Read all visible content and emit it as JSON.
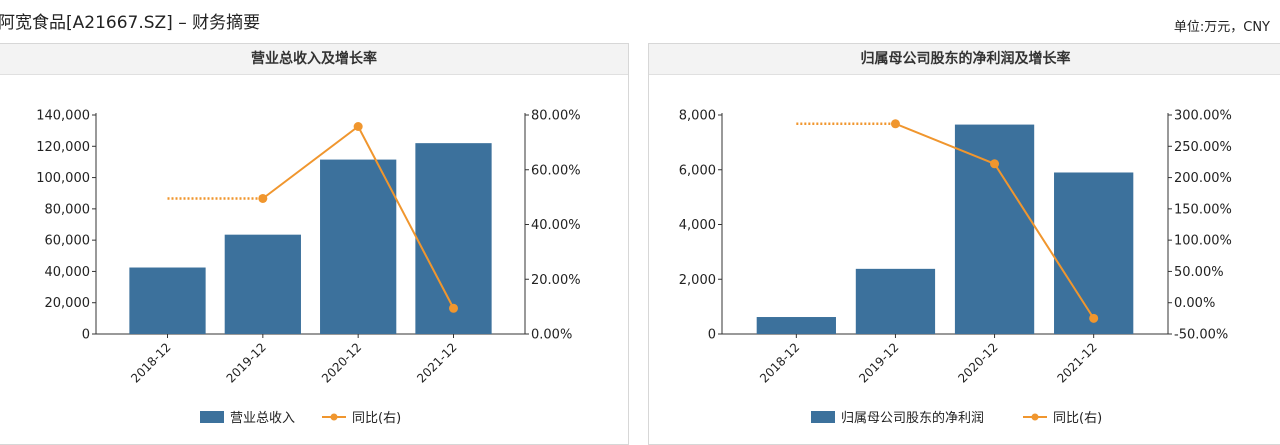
{
  "page": {
    "title": "阿宽食品[A21667.SZ] – 财务摘要",
    "unit": "单位:万元，CNY"
  },
  "colors": {
    "bar": "#3c719c",
    "line": "#f0962e",
    "axis": "#333333"
  },
  "chart_data": [
    {
      "type": "bar",
      "title": "营业总收入及增长率",
      "categories": [
        "2018-12",
        "2019-12",
        "2020-12",
        "2021-12"
      ],
      "series": [
        {
          "name": "营业总收入",
          "type": "bar",
          "axis": "left",
          "values": [
            42500,
            63500,
            111500,
            122000
          ]
        },
        {
          "name": "同比(右)",
          "type": "line",
          "axis": "right",
          "values": [
            null,
            49.5,
            75.8,
            9.4
          ],
          "dashed_lead": 49.5
        }
      ],
      "y_left": {
        "ticks": [
          "0",
          "20,000",
          "40,000",
          "60,000",
          "80,000",
          "100,000",
          "120,000",
          "140,000"
        ],
        "lim": [
          0,
          140000
        ]
      },
      "y_right": {
        "ticks": [
          "0.00%",
          "20.00%",
          "40.00%",
          "60.00%",
          "80.00%"
        ],
        "lim": [
          0,
          80
        ]
      },
      "legend": [
        "营业总收入",
        "同比(右)"
      ],
      "legend_position": "bottom",
      "grid": false
    },
    {
      "type": "bar",
      "title": "归属母公司股东的净利润及增长率",
      "categories": [
        "2018-12",
        "2019-12",
        "2020-12",
        "2021-12"
      ],
      "series": [
        {
          "name": "归属母公司股东的净利润",
          "type": "bar",
          "axis": "left",
          "values": [
            620,
            2380,
            7650,
            5900
          ]
        },
        {
          "name": "同比(右)",
          "type": "line",
          "axis": "right",
          "values": [
            null,
            286,
            222,
            -25
          ],
          "dashed_lead": 286
        }
      ],
      "y_left": {
        "ticks": [
          "0",
          "2,000",
          "4,000",
          "6,000",
          "8,000"
        ],
        "lim": [
          0,
          8000
        ]
      },
      "y_right": {
        "ticks": [
          "-50.00%",
          "0.00%",
          "50.00%",
          "100.00%",
          "150.00%",
          "200.00%",
          "250.00%",
          "300.00%"
        ],
        "lim": [
          -50,
          300
        ]
      },
      "legend": [
        "归属母公司股东的净利润",
        "同比(右)"
      ],
      "legend_position": "bottom",
      "grid": false
    }
  ]
}
